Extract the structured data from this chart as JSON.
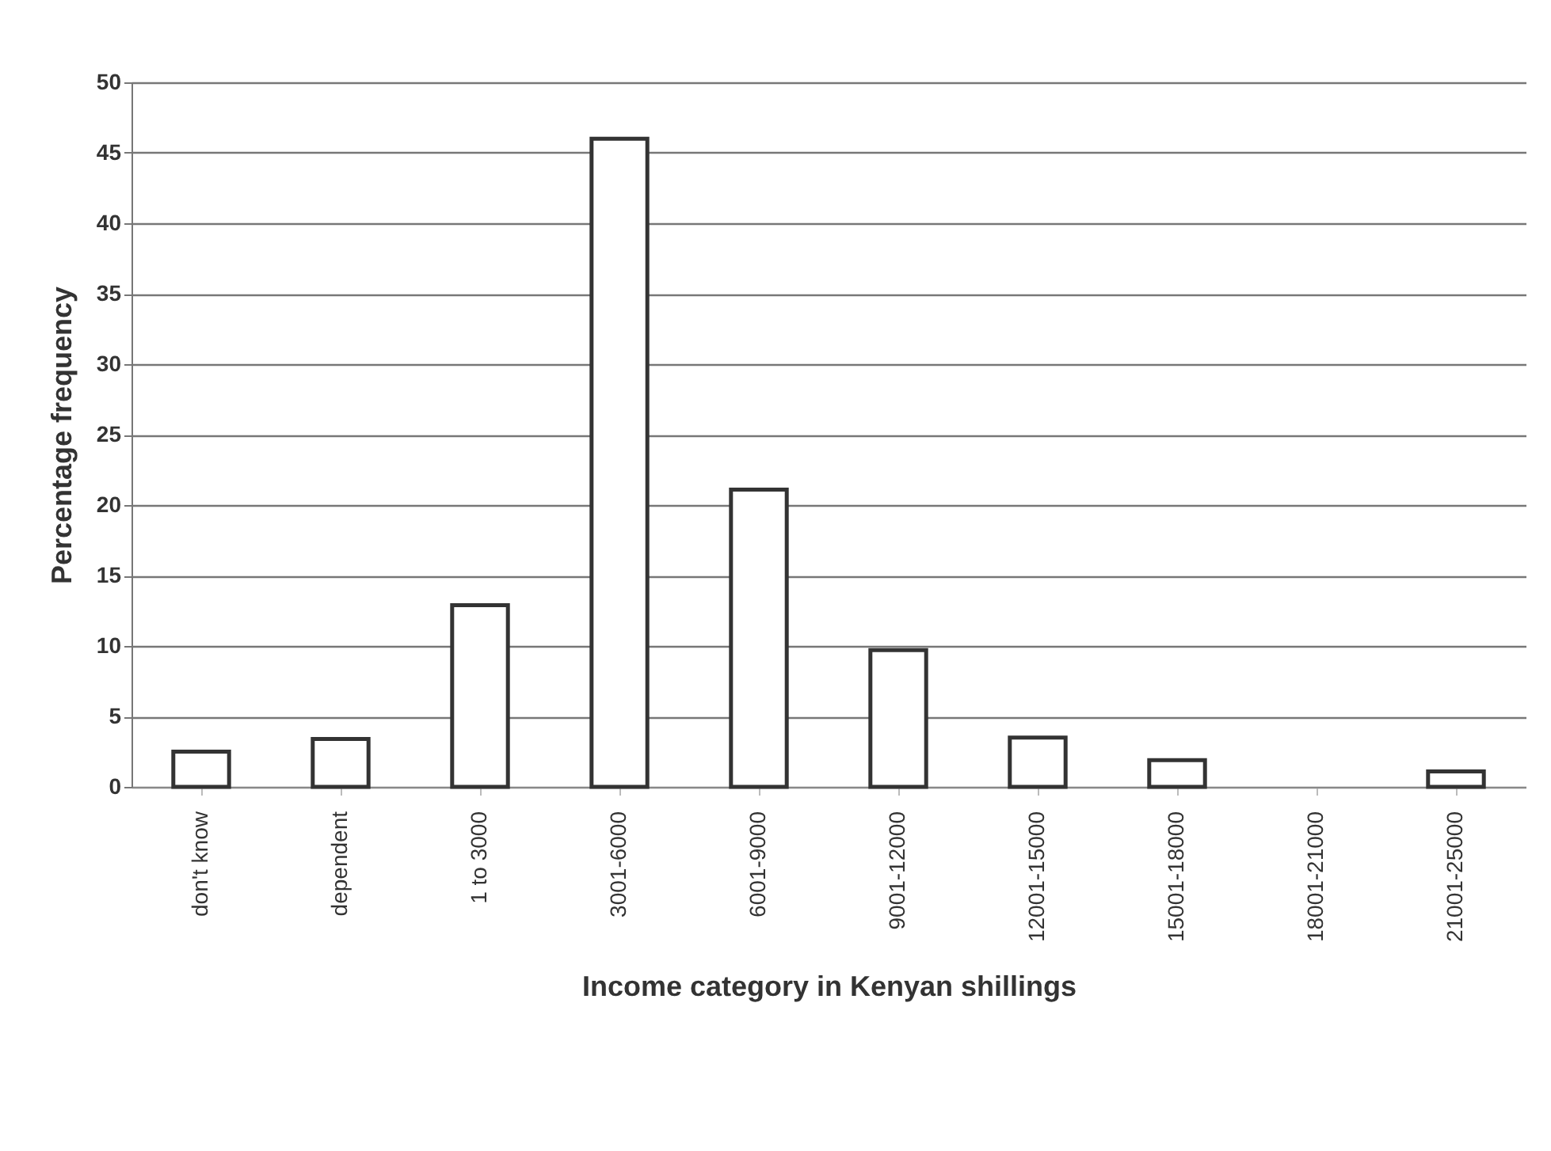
{
  "chart_data": {
    "type": "bar",
    "xlabel": "Income category in Kenyan shillings",
    "ylabel": "Percentage frequency",
    "categories": [
      "don't know",
      "dependent",
      "1 to 3000",
      "3001-6000",
      "6001-9000",
      "9001-12000",
      "12001-15000",
      "15001-18000",
      "18001-21000",
      "21001-25000"
    ],
    "values": [
      2.5,
      3.4,
      12.9,
      46,
      21.1,
      9.7,
      3.5,
      1.9,
      0,
      1.1
    ],
    "color": "#ffffff",
    "ylim": [
      0,
      50
    ],
    "yticks": [
      0,
      5,
      10,
      15,
      20,
      25,
      30,
      35,
      40,
      45,
      50
    ],
    "grid": "y"
  }
}
